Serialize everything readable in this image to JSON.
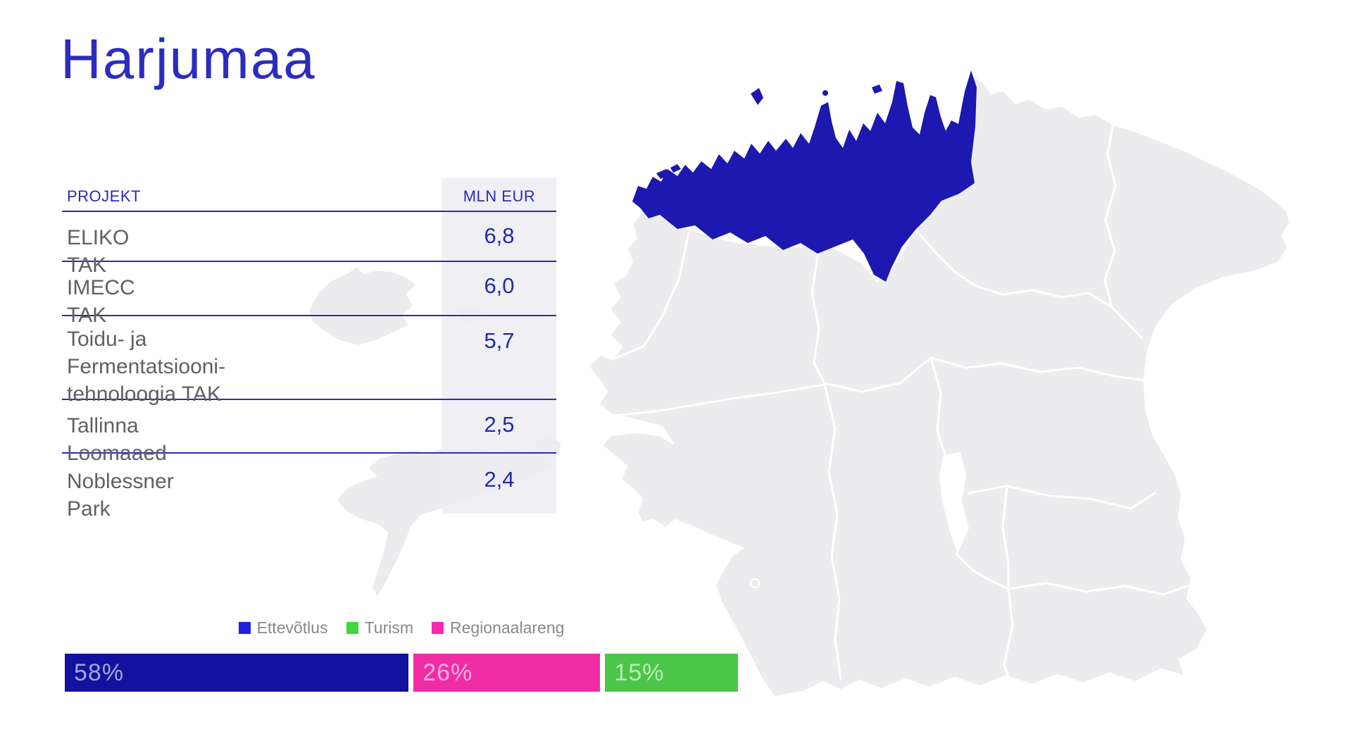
{
  "page": {
    "title": "Harjumaa"
  },
  "table": {
    "headers": {
      "project": "PROJEKT",
      "amount": "MLN EUR"
    },
    "rows": [
      {
        "name_lines": [
          "ELIKO TAK"
        ],
        "value": "6,8"
      },
      {
        "name_lines": [
          "IMECC TAK"
        ],
        "value": "6,0"
      },
      {
        "name_lines": [
          "Toidu- ja Fermentatsiooni-",
          "tehnoloogia TAK"
        ],
        "value": "5,7"
      },
      {
        "name_lines": [
          "Tallinna Loomaaed"
        ],
        "value": "2,5"
      },
      {
        "name_lines": [
          "Noblessner Park"
        ],
        "value": "2,4"
      }
    ]
  },
  "legend": {
    "items": [
      {
        "label": "Ettevõtlus",
        "color": "#2020e0"
      },
      {
        "label": "Turism",
        "color": "#3fd63f"
      },
      {
        "label": "Regionaalareng",
        "color": "#fa28b4"
      }
    ]
  },
  "bar": {
    "segments": [
      {
        "label": "58%",
        "value": 58,
        "color": "#11129f"
      },
      {
        "label": "26%",
        "value": 26,
        "color": "#f02ca4"
      },
      {
        "label": "15%",
        "value": 15,
        "color": "#4cc648"
      }
    ]
  },
  "map": {
    "highlighted_region": "Harjumaa",
    "highlight_color": "#1c18b0",
    "base_color": "#ececee"
  },
  "chart_data": [
    {
      "type": "bar",
      "subtype": "horizontal-stacked-percentage",
      "categories": [
        "Ettevõtlus",
        "Regionaalareng",
        "Turism"
      ],
      "values": [
        58,
        26,
        15
      ],
      "unit": "%",
      "title": "",
      "legend_entries": [
        "Ettevõtlus",
        "Turism",
        "Regionaalareng"
      ],
      "legend_position": "above-bar",
      "segment_order_colors": [
        "#11129f",
        "#f02ca4",
        "#4cc648"
      ]
    },
    {
      "type": "table",
      "title": "Harjumaa",
      "columns": [
        "PROJEKT",
        "MLN EUR"
      ],
      "rows": [
        [
          "ELIKO TAK",
          6.8
        ],
        [
          "IMECC TAK",
          6.0
        ],
        [
          "Toidu- ja Fermentatsioonitehnoloogia TAK",
          5.7
        ],
        [
          "Tallinna Loomaaed",
          2.5
        ],
        [
          "Noblessner Park",
          2.4
        ]
      ]
    }
  ]
}
